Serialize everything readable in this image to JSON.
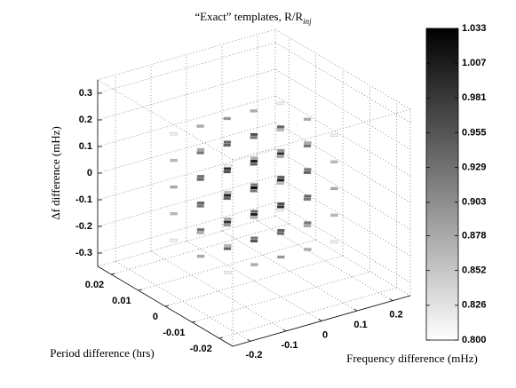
{
  "chart_data": {
    "type": "scatter3d",
    "title": "“Exact” templates, R/R",
    "title_subscript": "inj",
    "xlabel": "Frequency difference (mHz)",
    "ylabel": "Period difference (hrs)",
    "zlabel": "Δf difference (mHz)",
    "xlim": [
      -0.25,
      0.25
    ],
    "xticks": [
      -0.2,
      -0.1,
      0,
      0.1,
      0.2
    ],
    "ylim": [
      -0.025,
      0.025
    ],
    "yticks": [
      -0.02,
      -0.01,
      0,
      0.01,
      0.02
    ],
    "zlim": [
      -0.35,
      0.35
    ],
    "zticks": [
      -0.3,
      -0.2,
      -0.1,
      0,
      0.1,
      0.2,
      0.3
    ],
    "clim": [
      0.8,
      1.033
    ],
    "cticks": [
      {
        "value": 0.8,
        "label": "0.800"
      },
      0.826,
      0.852,
      0.878,
      0.903,
      0.929,
      0.955,
      0.981,
      1.007,
      1.033
    ],
    "colormap": [
      "#ffffff",
      "#000000"
    ],
    "grid": true,
    "x": [
      -0.15,
      -0.075,
      0,
      0.075,
      0.15,
      -0.15,
      -0.075,
      0,
      0.075,
      0.15,
      -0.15,
      -0.075,
      0,
      0.075,
      0.15,
      -0.15,
      -0.075,
      0,
      0.075,
      0.15,
      -0.15,
      -0.075,
      0,
      0.075,
      0.15,
      -0.15,
      -0.075,
      0,
      0.075,
      0.15,
      -0.15,
      -0.075,
      0,
      0.075,
      0.15,
      -0.15,
      -0.075,
      0,
      0.075,
      0.15,
      -0.15,
      -0.075,
      0,
      0.075,
      0.15,
      -0.15,
      -0.075,
      0,
      0.075,
      0.15,
      -0.15,
      -0.075,
      0,
      0.075,
      0.15,
      -0.15,
      -0.075,
      0,
      0.075,
      0.15,
      -0.15,
      -0.075,
      0,
      0.075,
      0.15,
      -0.15,
      -0.075,
      0,
      0.075,
      0.15,
      -0.15,
      -0.075,
      0,
      0.075,
      0.15
    ],
    "y": [
      -0.01,
      -0.01,
      -0.01,
      -0.01,
      -0.01,
      -0.01,
      -0.01,
      -0.01,
      -0.01,
      -0.01,
      -0.01,
      -0.01,
      -0.01,
      -0.01,
      -0.01,
      -0.01,
      -0.01,
      -0.01,
      -0.01,
      -0.01,
      -0.01,
      -0.01,
      -0.01,
      -0.01,
      -0.01,
      0,
      0,
      0,
      0,
      0,
      0,
      0,
      0,
      0,
      0,
      0,
      0,
      0,
      0,
      0,
      0,
      0,
      0,
      0,
      0,
      0,
      0,
      0,
      0,
      0,
      0.01,
      0.01,
      0.01,
      0.01,
      0.01,
      0.01,
      0.01,
      0.01,
      0.01,
      0.01,
      0.01,
      0.01,
      0.01,
      0.01,
      0.01,
      0.01,
      0.01,
      0.01,
      0.01,
      0.01,
      0.01,
      0.01,
      0.01,
      0.01,
      0.01
    ],
    "z": [
      -0.2,
      -0.2,
      -0.2,
      -0.2,
      -0.2,
      -0.1,
      -0.1,
      -0.1,
      -0.1,
      -0.1,
      0,
      0,
      0,
      0,
      0,
      0.1,
      0.1,
      0.1,
      0.1,
      0.1,
      0.2,
      0.2,
      0.2,
      0.2,
      0.2,
      -0.2,
      -0.2,
      -0.2,
      -0.2,
      -0.2,
      -0.1,
      -0.1,
      -0.1,
      -0.1,
      -0.1,
      0,
      0,
      0,
      0,
      0,
      0.1,
      0.1,
      0.1,
      0.1,
      0.1,
      0.2,
      0.2,
      0.2,
      0.2,
      0.2,
      -0.2,
      -0.2,
      -0.2,
      -0.2,
      -0.2,
      -0.1,
      -0.1,
      -0.1,
      -0.1,
      -0.1,
      0,
      0,
      0,
      0,
      0,
      0.1,
      0.1,
      0.1,
      0.1,
      0.1,
      0.2,
      0.2,
      0.2,
      0.2,
      0.2
    ],
    "values": [
      0.813,
      0.876,
      0.897,
      0.876,
      0.813,
      0.863,
      0.926,
      0.947,
      0.926,
      0.863,
      0.879,
      0.942,
      0.963,
      0.942,
      0.879,
      0.863,
      0.926,
      0.947,
      0.926,
      0.863,
      0.813,
      0.876,
      0.897,
      0.876,
      0.813,
      0.879,
      0.942,
      0.963,
      0.942,
      0.879,
      0.929,
      0.992,
      1.013,
      0.992,
      0.929,
      0.946,
      1.009,
      1.03,
      1.009,
      0.946,
      0.929,
      0.992,
      1.013,
      0.992,
      0.929,
      0.879,
      0.942,
      0.963,
      0.942,
      0.879,
      0.813,
      0.876,
      0.897,
      0.876,
      0.813,
      0.863,
      0.926,
      0.947,
      0.926,
      0.863,
      0.879,
      0.942,
      0.963,
      0.942,
      0.879,
      0.863,
      0.926,
      0.947,
      0.926,
      0.863,
      0.813,
      0.876,
      0.897,
      0.876,
      0.813
    ]
  }
}
